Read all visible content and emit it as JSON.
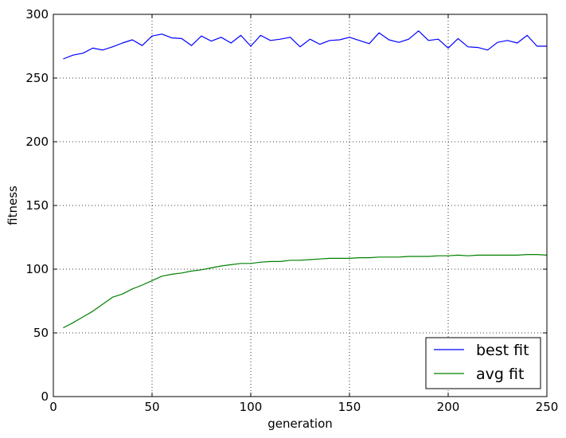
{
  "chart_data": {
    "type": "line",
    "title": "",
    "xlabel": "generation",
    "ylabel": "fitness",
    "xlim": [
      0,
      250
    ],
    "ylim": [
      0,
      300
    ],
    "xticks": [
      0,
      50,
      100,
      150,
      200,
      250
    ],
    "yticks": [
      0,
      50,
      100,
      150,
      200,
      250,
      300
    ],
    "grid": true,
    "legend_position": "bottom-right",
    "x": [
      5,
      10,
      15,
      20,
      25,
      30,
      35,
      40,
      45,
      50,
      55,
      60,
      65,
      70,
      75,
      80,
      85,
      90,
      95,
      100,
      105,
      110,
      115,
      120,
      125,
      130,
      135,
      140,
      145,
      150,
      155,
      160,
      165,
      170,
      175,
      180,
      185,
      190,
      195,
      200,
      205,
      210,
      215,
      220,
      225,
      230,
      235,
      240,
      245,
      250
    ],
    "series": [
      {
        "name": "best fit",
        "color": "#0000ff",
        "values": [
          265,
          268,
          269.5,
          273.5,
          272,
          274.5,
          277.5,
          280,
          275.5,
          283,
          284.5,
          281.5,
          281,
          275.5,
          283,
          279,
          282,
          277.5,
          283.5,
          275,
          283.5,
          279.5,
          280.5,
          282,
          274.5,
          280.5,
          276.5,
          279.5,
          280,
          282,
          279.5,
          277,
          285.5,
          280,
          278,
          280.5,
          287,
          279.5,
          280.5,
          273.5,
          281,
          274.5,
          274,
          272,
          278,
          279.5,
          277.5,
          283.5,
          275,
          275
        ]
      },
      {
        "name": "avg fit",
        "color": "#008000",
        "values": [
          54,
          58,
          62.5,
          67,
          72.5,
          78,
          80.5,
          84.5,
          87.5,
          91,
          94.5,
          96,
          97,
          98.5,
          99.5,
          101,
          102.5,
          103.5,
          104.5,
          104.5,
          105.5,
          106,
          106,
          107,
          107,
          107.5,
          108,
          108.5,
          108.5,
          108.5,
          109,
          109,
          109.5,
          109.5,
          109.5,
          110,
          110,
          110,
          110.5,
          110.5,
          111,
          110.5,
          111,
          111,
          111,
          111,
          111,
          111.5,
          111.5,
          111
        ]
      }
    ]
  }
}
